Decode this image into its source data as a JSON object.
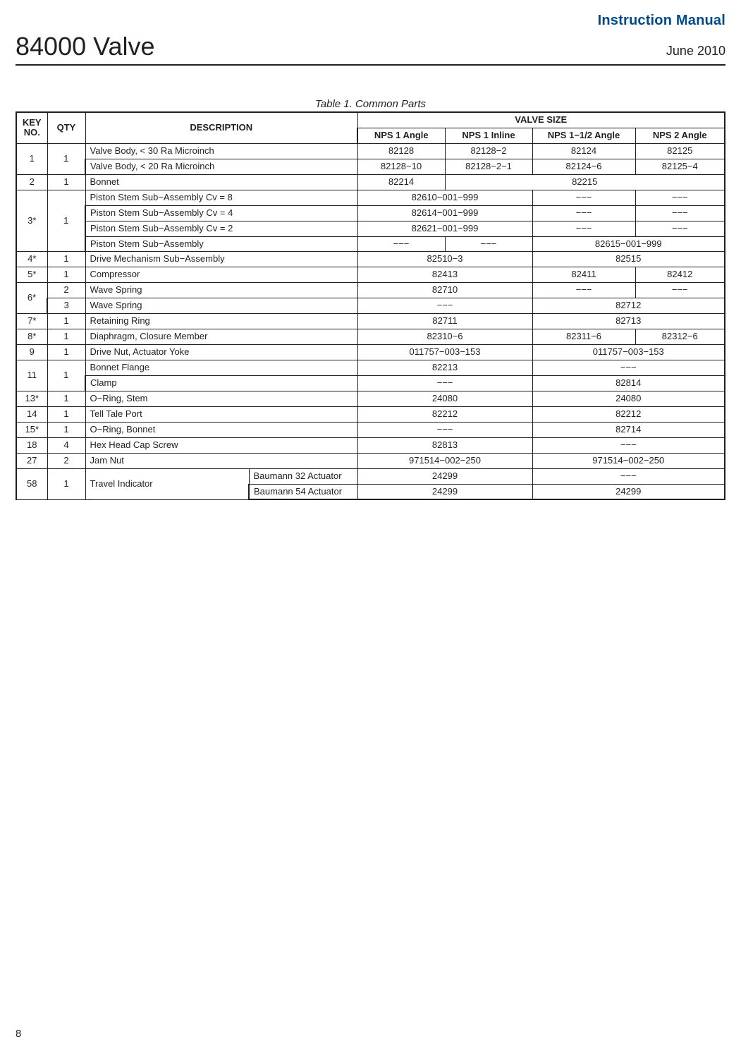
{
  "header": {
    "manual_title": "Instruction Manual",
    "product": "84000 Valve",
    "date": "June 2010"
  },
  "caption": "Table 1. Common Parts",
  "columns": {
    "key": "KEY NO.",
    "qty": "QTY",
    "desc": "DESCRIPTION",
    "valve_size": "VALVE SIZE",
    "v1": "NPS 1 Angle",
    "v2": "NPS 1 Inline",
    "v3": "NPS 1−1/2 Angle",
    "v4": "NPS 2 Angle"
  },
  "rows": {
    "r1a": {
      "key": "1",
      "qty": "1",
      "desc": "Valve Body, < 30 Ra Microinch",
      "v1": "82128",
      "v2": "82128−2",
      "v3": "82124",
      "v4": "82125"
    },
    "r1b": {
      "desc": "Valve Body, < 20 Ra Microinch",
      "v1": "82128−10",
      "v2": "82128−2−1",
      "v3": "82124−6",
      "v4": "82125−4"
    },
    "r2": {
      "key": "2",
      "qty": "1",
      "desc": "Bonnet",
      "v12": "82214",
      "v34": "82215"
    },
    "r3a": {
      "key": "3*",
      "qty": "1",
      "desc": "Piston Stem Sub−Assembly Cv = 8",
      "v12": "82610−001−999",
      "v3": "−−−",
      "v4": "−−−"
    },
    "r3b": {
      "desc": "Piston Stem Sub−Assembly Cv = 4",
      "v12": "82614−001−999",
      "v3": "−−−",
      "v4": "−−−"
    },
    "r3c": {
      "desc": "Piston Stem Sub−Assembly Cv = 2",
      "v12": "82621−001−999",
      "v3": "−−−",
      "v4": "−−−"
    },
    "r3d": {
      "desc": "Piston Stem Sub−Assembly",
      "v1": "−−−",
      "v2": "−−−",
      "v34": "82615−001−999"
    },
    "r4": {
      "key": "4*",
      "qty": "1",
      "desc": "Drive Mechanism Sub−Assembly",
      "v12": "82510−3",
      "v34": "82515"
    },
    "r5": {
      "key": "5*",
      "qty": "1",
      "desc": "Compressor",
      "v12": "82413",
      "v3": "82411",
      "v4": "82412"
    },
    "r6a": {
      "key": "6*",
      "qty_a": "2",
      "desc": "Wave Spring",
      "v12": "82710",
      "v3": "−−−",
      "v4": "−−−"
    },
    "r6b": {
      "qty_b": "3",
      "desc": "Wave Spring",
      "v12": "−−−",
      "v34": "82712"
    },
    "r7": {
      "key": "7*",
      "qty": "1",
      "desc": "Retaining Ring",
      "v12": "82711",
      "v34": "82713"
    },
    "r8": {
      "key": "8*",
      "qty": "1",
      "desc": "Diaphragm, Closure Member",
      "v12": "82310−6",
      "v3": "82311−6",
      "v4": "82312−6"
    },
    "r9": {
      "key": "9",
      "qty": "1",
      "desc": "Drive Nut, Actuator Yoke",
      "v12": "011757−003−153",
      "v34": "011757−003−153"
    },
    "r11a": {
      "key": "11",
      "qty": "1",
      "desc": "Bonnet Flange",
      "v12": "82213",
      "v34": "−−−"
    },
    "r11b": {
      "desc": "Clamp",
      "v12": "−−−",
      "v34": "82814"
    },
    "r13": {
      "key": "13*",
      "qty": "1",
      "desc": "O−Ring, Stem",
      "v12": "24080",
      "v34": "24080"
    },
    "r14": {
      "key": "14",
      "qty": "1",
      "desc": "Tell Tale Port",
      "v12": "82212",
      "v34": "82212"
    },
    "r15": {
      "key": "15*",
      "qty": "1",
      "desc": "O−Ring, Bonnet",
      "v12": "−−−",
      "v34": "82714"
    },
    "r18": {
      "key": "18",
      "qty": "4",
      "desc": "Hex Head Cap Screw",
      "v12": "82813",
      "v34": "−−−"
    },
    "r27": {
      "key": "27",
      "qty": "2",
      "desc": "Jam Nut",
      "v12": "971514−002−250",
      "v34": "971514−002−250"
    },
    "r58a": {
      "key": "58",
      "qty": "1",
      "desc": "Travel Indicator",
      "sub": "Baumann 32 Actuator",
      "v12": "24299",
      "v34": "−−−"
    },
    "r58b": {
      "sub": "Baumann 54 Actuator",
      "v12": "24299",
      "v34": "24299"
    }
  },
  "page_number": "8",
  "colors": {
    "accent": "#004a8b",
    "text": "#231f20",
    "bg": "#ffffff"
  }
}
